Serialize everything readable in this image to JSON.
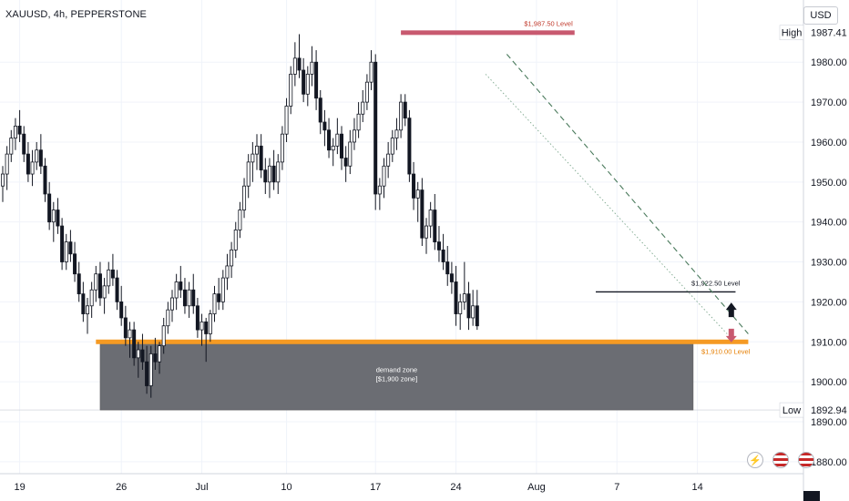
{
  "header": {
    "symbol_line": "XAUUSD, 4h, PEPPERSTONE",
    "currency_button": "USD"
  },
  "colors": {
    "up": "#ffffff",
    "down": "#131722",
    "orange": "#f59a23",
    "pink": "#c8596f",
    "zone": "#6b6d73",
    "axis_text": "#131722"
  },
  "chart_data": {
    "type": "candlestick",
    "symbol": "XAUUSD",
    "timeframe": "4h",
    "exchange": "PEPPERSTONE",
    "ylim": [
      1877,
      1991
    ],
    "y_ticks": [
      1880,
      1890,
      1900,
      1910,
      1920,
      1930,
      1940,
      1950,
      1960,
      1970,
      1980
    ],
    "y_tick_labels": [
      "1880.00",
      "1890.00",
      "1900.00",
      "1910.00",
      "1920.00",
      "1930.00",
      "1940.00",
      "1950.00",
      "1960.00",
      "1970.00",
      "1980.00"
    ],
    "x_tick_labels": [
      "19",
      "26",
      "Jul",
      "10",
      "17",
      "24",
      "Aug",
      "7",
      "14"
    ],
    "x_tick_bar_index": [
      4,
      28,
      47,
      67,
      88,
      107,
      126,
      145,
      164
    ],
    "high": {
      "label": "High",
      "value": 1987.41,
      "value_label": "1987.41"
    },
    "low": {
      "label": "Low",
      "value": 1892.94,
      "value_label": "1892.94"
    },
    "levels": [
      {
        "name": "upper",
        "value": 1987.5,
        "label": "$1,987.50 Level",
        "from_bar": 94,
        "to_bar": 135
      },
      {
        "name": "middle",
        "value": 1922.5,
        "label": "$1,922.50 Level",
        "from_bar": 140,
        "to_bar": 173
      },
      {
        "name": "lower",
        "value": 1910.0,
        "label": "$1,910.00 Level",
        "from_bar": 22,
        "to_bar": 176
      }
    ],
    "zone": {
      "label_line1": "demand zone",
      "label_line2": "[$1,900 zone]",
      "top": 1910.0,
      "bottom": 1892.94,
      "from_bar": 23,
      "to_bar": 163
    },
    "trendlines": [
      {
        "style": "dashed",
        "from": [
          119,
          1982
        ],
        "to": [
          176,
          1912
        ]
      },
      {
        "style": "dotted",
        "from": [
          114,
          1977
        ],
        "to": [
          171,
          1912
        ]
      }
    ],
    "arrows": [
      {
        "direction": "up",
        "bar": 172,
        "value": 1918
      },
      {
        "direction": "down",
        "bar": 172,
        "value": 1911
      }
    ],
    "ohlc": [
      [
        1949,
        1954,
        1945,
        1952
      ],
      [
        1952,
        1959,
        1948,
        1957
      ],
      [
        1957,
        1963,
        1955,
        1961
      ],
      [
        1961,
        1966,
        1958,
        1964
      ],
      [
        1964,
        1968,
        1960,
        1962
      ],
      [
        1962,
        1964,
        1955,
        1957
      ],
      [
        1957,
        1960,
        1950,
        1952
      ],
      [
        1952,
        1958,
        1949,
        1955
      ],
      [
        1955,
        1960,
        1953,
        1958
      ],
      [
        1958,
        1962,
        1952,
        1954
      ],
      [
        1954,
        1956,
        1945,
        1947
      ],
      [
        1947,
        1950,
        1938,
        1940
      ],
      [
        1940,
        1945,
        1935,
        1943
      ],
      [
        1943,
        1946,
        1937,
        1939
      ],
      [
        1939,
        1941,
        1928,
        1930
      ],
      [
        1930,
        1937,
        1928,
        1935
      ],
      [
        1935,
        1938,
        1930,
        1932
      ],
      [
        1932,
        1935,
        1925,
        1927
      ],
      [
        1927,
        1930,
        1920,
        1922
      ],
      [
        1922,
        1925,
        1915,
        1917
      ],
      [
        1917,
        1921,
        1912,
        1919
      ],
      [
        1919,
        1925,
        1916,
        1923
      ],
      [
        1923,
        1929,
        1920,
        1927
      ],
      [
        1927,
        1930,
        1919,
        1921
      ],
      [
        1921,
        1926,
        1917,
        1924
      ],
      [
        1924,
        1930,
        1922,
        1928
      ],
      [
        1928,
        1932,
        1924,
        1926
      ],
      [
        1926,
        1928,
        1918,
        1920
      ],
      [
        1920,
        1924,
        1914,
        1916
      ],
      [
        1916,
        1919,
        1909,
        1911
      ],
      [
        1911,
        1915,
        1906,
        1913
      ],
      [
        1913,
        1915,
        1904,
        1906
      ],
      [
        1906,
        1910,
        1901,
        1908
      ],
      [
        1908,
        1912,
        1903,
        1905
      ],
      [
        1905,
        1909,
        1897,
        1899
      ],
      [
        1899,
        1909,
        1896,
        1907
      ],
      [
        1907,
        1911,
        1903,
        1905
      ],
      [
        1905,
        1910,
        1902,
        1909
      ],
      [
        1909,
        1916,
        1907,
        1914
      ],
      [
        1914,
        1920,
        1912,
        1918
      ],
      [
        1918,
        1923,
        1915,
        1921
      ],
      [
        1921,
        1927,
        1918,
        1925
      ],
      [
        1925,
        1929,
        1921,
        1923
      ],
      [
        1923,
        1926,
        1917,
        1919
      ],
      [
        1919,
        1925,
        1916,
        1923
      ],
      [
        1923,
        1927,
        1917,
        1919
      ],
      [
        1919,
        1921,
        1911,
        1913
      ],
      [
        1913,
        1917,
        1909,
        1915
      ],
      [
        1915,
        1916,
        1905,
        1912
      ],
      [
        1912,
        1918,
        1910,
        1917
      ],
      [
        1917,
        1924,
        1915,
        1922
      ],
      [
        1922,
        1926,
        1918,
        1920
      ],
      [
        1920,
        1928,
        1918,
        1926
      ],
      [
        1926,
        1932,
        1923,
        1929
      ],
      [
        1929,
        1935,
        1926,
        1933
      ],
      [
        1933,
        1940,
        1931,
        1938
      ],
      [
        1938,
        1945,
        1936,
        1943
      ],
      [
        1943,
        1951,
        1941,
        1949
      ],
      [
        1949,
        1957,
        1946,
        1955
      ],
      [
        1955,
        1960,
        1950,
        1957
      ],
      [
        1957,
        1962,
        1953,
        1959
      ],
      [
        1959,
        1962,
        1951,
        1953
      ],
      [
        1953,
        1956,
        1947,
        1950
      ],
      [
        1950,
        1956,
        1946,
        1954
      ],
      [
        1954,
        1958,
        1948,
        1950
      ],
      [
        1950,
        1957,
        1947,
        1955
      ],
      [
        1955,
        1964,
        1953,
        1962
      ],
      [
        1962,
        1971,
        1960,
        1969
      ],
      [
        1969,
        1979,
        1967,
        1977
      ],
      [
        1977,
        1985,
        1974,
        1981
      ],
      [
        1981,
        1987,
        1976,
        1978
      ],
      [
        1978,
        1981,
        1970,
        1972
      ],
      [
        1972,
        1979,
        1969,
        1977
      ],
      [
        1977,
        1984,
        1974,
        1980
      ],
      [
        1980,
        1983,
        1968,
        1971
      ],
      [
        1971,
        1973,
        1962,
        1965
      ],
      [
        1965,
        1968,
        1959,
        1963
      ],
      [
        1963,
        1966,
        1956,
        1958
      ],
      [
        1958,
        1961,
        1954,
        1959
      ],
      [
        1959,
        1966,
        1957,
        1962
      ],
      [
        1962,
        1964,
        1953,
        1956
      ],
      [
        1956,
        1959,
        1950,
        1954
      ],
      [
        1954,
        1963,
        1952,
        1960
      ],
      [
        1960,
        1966,
        1958,
        1963
      ],
      [
        1963,
        1970,
        1961,
        1967
      ],
      [
        1967,
        1973,
        1965,
        1970
      ],
      [
        1970,
        1977,
        1968,
        1975
      ],
      [
        1975,
        1983,
        1973,
        1980
      ],
      [
        1980,
        1982,
        1943,
        1947
      ],
      [
        1947,
        1951,
        1943,
        1949
      ],
      [
        1949,
        1956,
        1946,
        1954
      ],
      [
        1954,
        1960,
        1951,
        1957
      ],
      [
        1957,
        1963,
        1955,
        1961
      ],
      [
        1961,
        1966,
        1958,
        1963
      ],
      [
        1963,
        1972,
        1961,
        1970
      ],
      [
        1970,
        1972,
        1964,
        1966
      ],
      [
        1966,
        1968,
        1950,
        1952
      ],
      [
        1952,
        1955,
        1943,
        1946
      ],
      [
        1946,
        1950,
        1940,
        1948
      ],
      [
        1948,
        1951,
        1934,
        1936
      ],
      [
        1936,
        1941,
        1932,
        1939
      ],
      [
        1939,
        1945,
        1936,
        1943
      ],
      [
        1943,
        1947,
        1933,
        1935
      ],
      [
        1935,
        1939,
        1930,
        1933
      ],
      [
        1933,
        1937,
        1928,
        1930
      ],
      [
        1930,
        1934,
        1924,
        1927
      ],
      [
        1927,
        1930,
        1922,
        1925
      ],
      [
        1925,
        1929,
        1914,
        1917
      ],
      [
        1917,
        1922,
        1913,
        1920
      ],
      [
        1920,
        1930,
        1918,
        1922
      ],
      [
        1922,
        1925,
        1913,
        1916
      ],
      [
        1916,
        1923,
        1914,
        1919
      ],
      [
        1919,
        1923,
        1913,
        1914
      ]
    ]
  }
}
